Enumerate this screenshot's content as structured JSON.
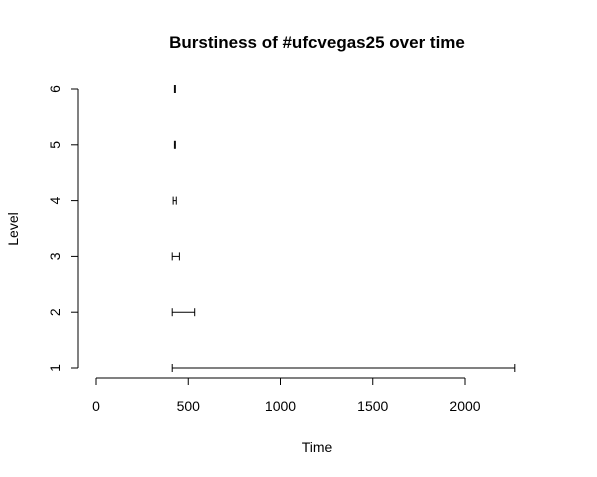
{
  "chart_data": {
    "type": "interval",
    "title": "Burstiness of  #ufcvegas25 over time",
    "xlabel": "Time",
    "ylabel": "Level",
    "xlim": [
      0,
      2270
    ],
    "ylim": [
      1,
      6
    ],
    "x_ticks": [
      0,
      500,
      1000,
      1500,
      2000
    ],
    "x_tick_labels": [
      "0",
      "500",
      "1000",
      "1500",
      "2000"
    ],
    "y_ticks": [
      1,
      2,
      3,
      4,
      5,
      6
    ],
    "y_tick_labels": [
      "1",
      "2",
      "3",
      "4",
      "5",
      "6"
    ],
    "grid": false,
    "legend": "none",
    "bursts": [
      {
        "level": 1,
        "start": 413,
        "end": 2270
      },
      {
        "level": 2,
        "start": 413,
        "end": 535
      },
      {
        "level": 3,
        "start": 413,
        "end": 452
      },
      {
        "level": 4,
        "start": 418,
        "end": 435
      },
      {
        "level": 5,
        "start": 425,
        "end": 430
      },
      {
        "level": 6,
        "start": 425,
        "end": 430
      }
    ]
  }
}
